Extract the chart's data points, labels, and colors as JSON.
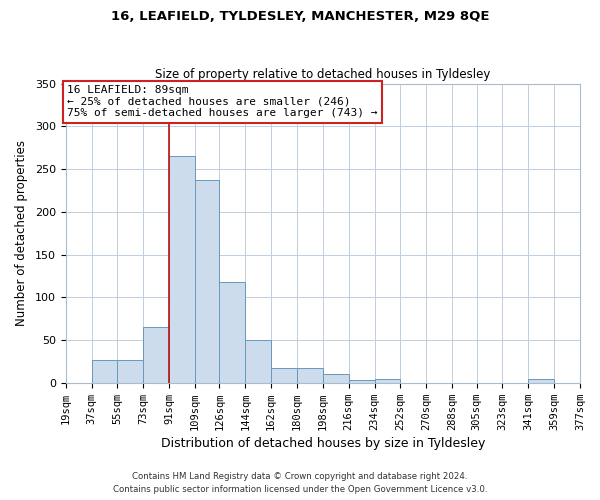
{
  "title": "16, LEAFIELD, TYLDESLEY, MANCHESTER, M29 8QE",
  "subtitle": "Size of property relative to detached houses in Tyldesley",
  "xlabel": "Distribution of detached houses by size in Tyldesley",
  "ylabel": "Number of detached properties",
  "bin_edges": [
    19,
    37,
    55,
    73,
    91,
    109,
    126,
    144,
    162,
    180,
    198,
    216,
    234,
    252,
    270,
    288,
    305,
    323,
    341,
    359,
    377
  ],
  "bin_labels": [
    "19sqm",
    "37sqm",
    "55sqm",
    "73sqm",
    "91sqm",
    "109sqm",
    "126sqm",
    "144sqm",
    "162sqm",
    "180sqm",
    "198sqm",
    "216sqm",
    "234sqm",
    "252sqm",
    "270sqm",
    "288sqm",
    "305sqm",
    "323sqm",
    "341sqm",
    "359sqm",
    "377sqm"
  ],
  "counts": [
    0,
    27,
    27,
    65,
    265,
    237,
    118,
    50,
    17,
    17,
    10,
    3,
    5,
    0,
    0,
    0,
    0,
    0,
    4,
    0,
    0
  ],
  "bar_color": "#cddcec",
  "bar_edge_color": "#6699bb",
  "vline_x": 91,
  "vline_color": "#bb1111",
  "annotation_text": "16 LEAFIELD: 89sqm\n← 25% of detached houses are smaller (246)\n75% of semi-detached houses are larger (743) →",
  "annotation_box_color": "#ffffff",
  "annotation_box_edge": "#cc2222",
  "ylim": [
    0,
    350
  ],
  "yticks": [
    0,
    50,
    100,
    150,
    200,
    250,
    300,
    350
  ],
  "footer1": "Contains HM Land Registry data © Crown copyright and database right 2024.",
  "footer2": "Contains public sector information licensed under the Open Government Licence v3.0.",
  "background_color": "#ffffff",
  "grid_color": "#c0cfe0",
  "title_fontsize": 9.5,
  "subtitle_fontsize": 8.5,
  "xlabel_fontsize": 9,
  "ylabel_fontsize": 8.5,
  "tick_fontsize": 7.5,
  "footer_fontsize": 6.2
}
